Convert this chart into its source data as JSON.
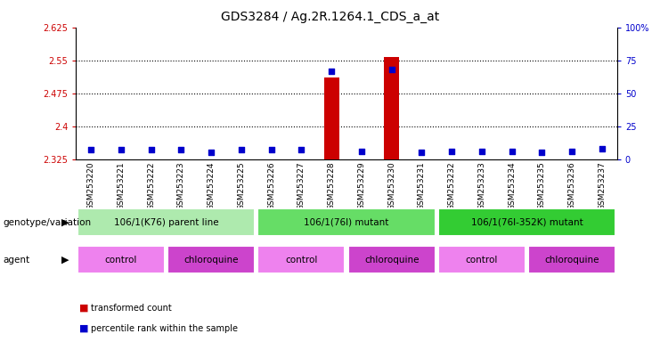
{
  "title": "GDS3284 / Ag.2R.1264.1_CDS_a_at",
  "samples": [
    "GSM253220",
    "GSM253221",
    "GSM253222",
    "GSM253223",
    "GSM253224",
    "GSM253225",
    "GSM253226",
    "GSM253227",
    "GSM253228",
    "GSM253229",
    "GSM253230",
    "GSM253231",
    "GSM253232",
    "GSM253233",
    "GSM253234",
    "GSM253235",
    "GSM253236",
    "GSM253237"
  ],
  "transformed_count": [
    2.325,
    2.325,
    2.325,
    2.325,
    2.325,
    2.325,
    2.325,
    2.325,
    2.51,
    2.325,
    2.558,
    2.325,
    2.325,
    2.325,
    2.325,
    2.325,
    2.325,
    2.325
  ],
  "percentile_rank": [
    7,
    7,
    7,
    7,
    5,
    7,
    7,
    7,
    67,
    6,
    68,
    5,
    6,
    6,
    6,
    5,
    6,
    8
  ],
  "ylim_left": [
    2.325,
    2.625
  ],
  "ylim_right": [
    0,
    100
  ],
  "yticks_left": [
    2.325,
    2.4,
    2.475,
    2.55,
    2.625
  ],
  "yticks_right": [
    0,
    25,
    50,
    75,
    100
  ],
  "ytick_labels_right": [
    "0",
    "25",
    "50",
    "75",
    "100%"
  ],
  "hlines": [
    2.4,
    2.475,
    2.55
  ],
  "genotype_groups": [
    {
      "label": "106/1(K76) parent line",
      "start": 0,
      "end": 6,
      "color": "#AEEAAE"
    },
    {
      "label": "106/1(76I) mutant",
      "start": 6,
      "end": 12,
      "color": "#66DD66"
    },
    {
      "label": "106/1(76I-352K) mutant",
      "start": 12,
      "end": 18,
      "color": "#33CC33"
    }
  ],
  "agent_groups": [
    {
      "label": "control",
      "start": 0,
      "end": 3,
      "color": "#EE82EE"
    },
    {
      "label": "chloroquine",
      "start": 3,
      "end": 6,
      "color": "#CC44CC"
    },
    {
      "label": "control",
      "start": 6,
      "end": 9,
      "color": "#EE82EE"
    },
    {
      "label": "chloroquine",
      "start": 9,
      "end": 12,
      "color": "#CC44CC"
    },
    {
      "label": "control",
      "start": 12,
      "end": 15,
      "color": "#EE82EE"
    },
    {
      "label": "chloroquine",
      "start": 15,
      "end": 18,
      "color": "#CC44CC"
    }
  ],
  "bar_color": "#CC0000",
  "dot_color": "#0000CC",
  "bar_width": 0.5,
  "dot_size": 25,
  "background_color": "#FFFFFF",
  "plot_bg_color": "#FFFFFF",
  "left_tick_color": "#CC0000",
  "right_tick_color": "#0000CC",
  "title_fontsize": 10,
  "tick_fontsize": 7,
  "label_fontsize": 7.5
}
